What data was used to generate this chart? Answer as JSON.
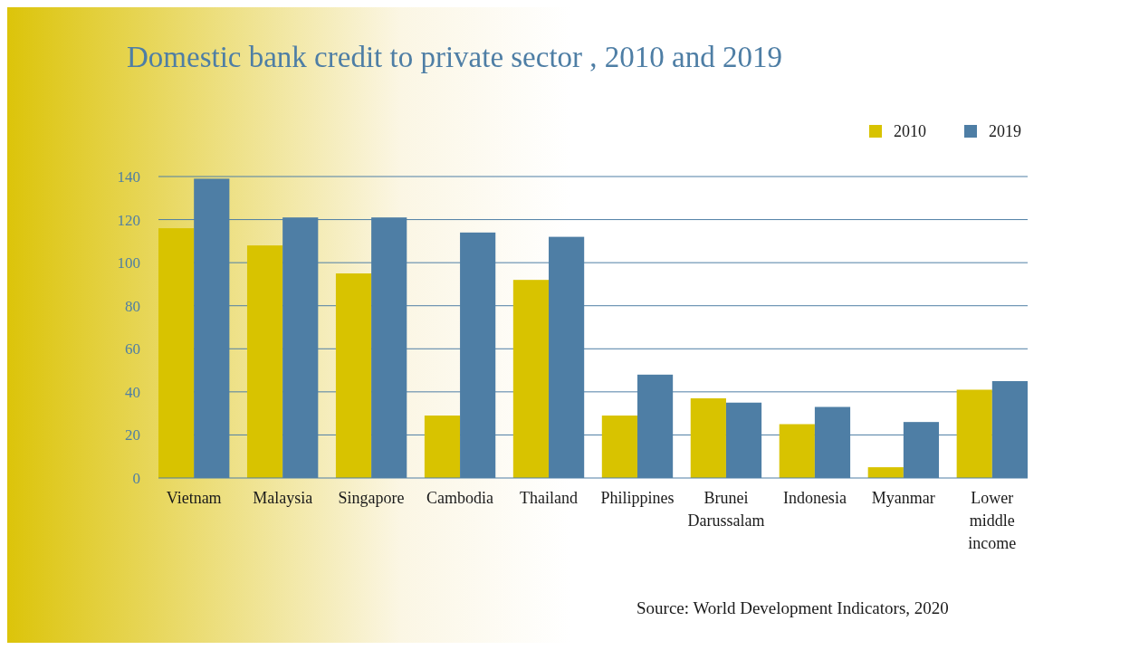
{
  "chart_data": {
    "type": "bar",
    "title": "Domestic bank credit to private sector , 2010 and 2019",
    "categories": [
      "Vietnam",
      "Malaysia",
      "Singapore",
      "Cambodia",
      "Thailand",
      "Philippines",
      "Brunei Darussalam",
      "Indonesia",
      "Myanmar",
      "Lower middle income"
    ],
    "series": [
      {
        "name": "2010",
        "color": "#d8c300",
        "values": [
          116,
          108,
          95,
          29,
          92,
          29,
          37,
          25,
          5,
          41
        ]
      },
      {
        "name": "2019",
        "color": "#4e7ea5",
        "values": [
          139,
          121,
          121,
          114,
          112,
          48,
          35,
          33,
          26,
          45
        ]
      }
    ],
    "ylim": [
      0,
      140
    ],
    "yticks": [
      0,
      20,
      40,
      60,
      80,
      100,
      120,
      140
    ],
    "grid": "y",
    "legend": "top right",
    "annotations": [
      "Source: World Development Indicators, 2020"
    ]
  }
}
